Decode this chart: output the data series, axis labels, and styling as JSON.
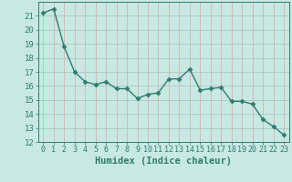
{
  "x": [
    0,
    1,
    2,
    3,
    4,
    5,
    6,
    7,
    8,
    9,
    10,
    11,
    12,
    13,
    14,
    15,
    16,
    17,
    18,
    19,
    20,
    21,
    22,
    23
  ],
  "y": [
    21.2,
    21.5,
    18.8,
    17.0,
    16.3,
    16.1,
    16.3,
    15.8,
    15.8,
    15.1,
    15.4,
    15.5,
    16.5,
    16.5,
    17.2,
    15.7,
    15.8,
    15.9,
    14.9,
    14.9,
    14.7,
    13.6,
    13.1,
    12.5
  ],
  "line_color": "#2e7d6e",
  "marker": "D",
  "marker_size": 2.5,
  "bg_color": "#c8e8e4",
  "grid_color_h": "#a8c8c4",
  "grid_color_v": "#d8b0b0",
  "tick_color": "#2e7d6e",
  "xlabel": "Humidex (Indice chaleur)",
  "xlabel_fontsize": 7.5,
  "ylim": [
    12,
    22
  ],
  "xlim": [
    -0.5,
    23.5
  ],
  "yticks": [
    12,
    13,
    14,
    15,
    16,
    17,
    18,
    19,
    20,
    21
  ],
  "xticks": [
    0,
    1,
    2,
    3,
    4,
    5,
    6,
    7,
    8,
    9,
    10,
    11,
    12,
    13,
    14,
    15,
    16,
    17,
    18,
    19,
    20,
    21,
    22,
    23
  ],
  "line_width": 1.0
}
